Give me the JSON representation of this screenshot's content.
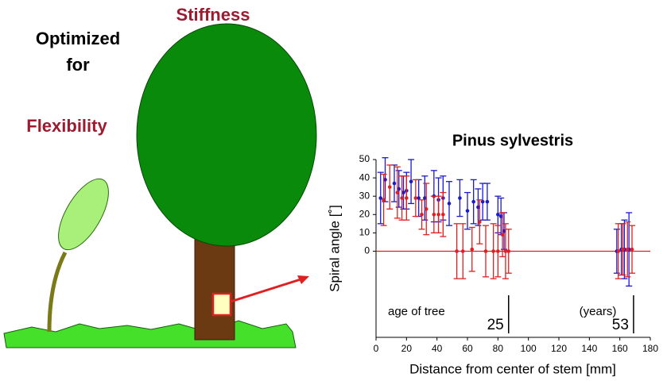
{
  "illustration": {
    "top_label": "Stiffness",
    "middle_lines": [
      "Optimized",
      "for"
    ],
    "bottom_label": "Flexibility"
  },
  "chart_data": {
    "type": "errorbar",
    "title": "Pinus sylvestris",
    "x_label": "Distance from center of stem [mm]",
    "y_label": "Spiral angle [˚]",
    "xlim": [
      0,
      180
    ],
    "xticks": [
      0,
      20,
      40,
      60,
      80,
      100,
      120,
      140,
      160,
      180
    ],
    "ylim": [
      -47,
      50
    ],
    "yticks": [
      0,
      10,
      20,
      30,
      40,
      50
    ],
    "reference_line": {
      "y": 0,
      "color": "#e02020"
    },
    "series": [
      {
        "color": "#1a1acc",
        "x": [
          3,
          6,
          12,
          15,
          18,
          20,
          23,
          28,
          32,
          38,
          41,
          44,
          48,
          55,
          60,
          64,
          67,
          70,
          73,
          80,
          82,
          84,
          158,
          161,
          163,
          166
        ],
        "values": [
          29,
          39,
          37,
          34,
          32,
          33,
          38,
          29,
          29,
          30,
          28,
          29,
          26,
          29,
          22,
          27,
          24,
          27,
          27,
          20,
          19,
          11,
          0,
          1,
          1,
          1
        ],
        "errors": [
          14,
          12,
          10,
          10,
          9,
          10,
          12,
          10,
          12,
          14,
          12,
          12,
          12,
          10,
          10,
          12,
          10,
          10,
          10,
          10,
          10,
          10,
          12,
          14,
          16,
          20
        ]
      },
      {
        "color": "#e02020",
        "x": [
          5,
          9,
          14,
          17,
          20,
          26,
          30,
          33,
          38,
          41,
          44,
          53,
          57,
          63,
          68,
          72,
          77,
          80,
          83,
          85,
          87,
          159,
          162,
          165,
          168
        ],
        "values": [
          28,
          35,
          32,
          29,
          29,
          29,
          20,
          23,
          20,
          20,
          20,
          0,
          0,
          1,
          16,
          0,
          0,
          0,
          9,
          0,
          0,
          0,
          1,
          1,
          1
        ],
        "errors": [
          14,
          12,
          14,
          12,
          12,
          10,
          8,
          14,
          10,
          10,
          12,
          15,
          15,
          12,
          12,
          14,
          15,
          14,
          12,
          15,
          12,
          15,
          14,
          15,
          13
        ]
      }
    ],
    "annotations": [
      "age of tree",
      "(years)"
    ],
    "age_markers": [
      {
        "x": 87,
        "label": "25"
      },
      {
        "x": 169,
        "label": "53"
      }
    ]
  }
}
